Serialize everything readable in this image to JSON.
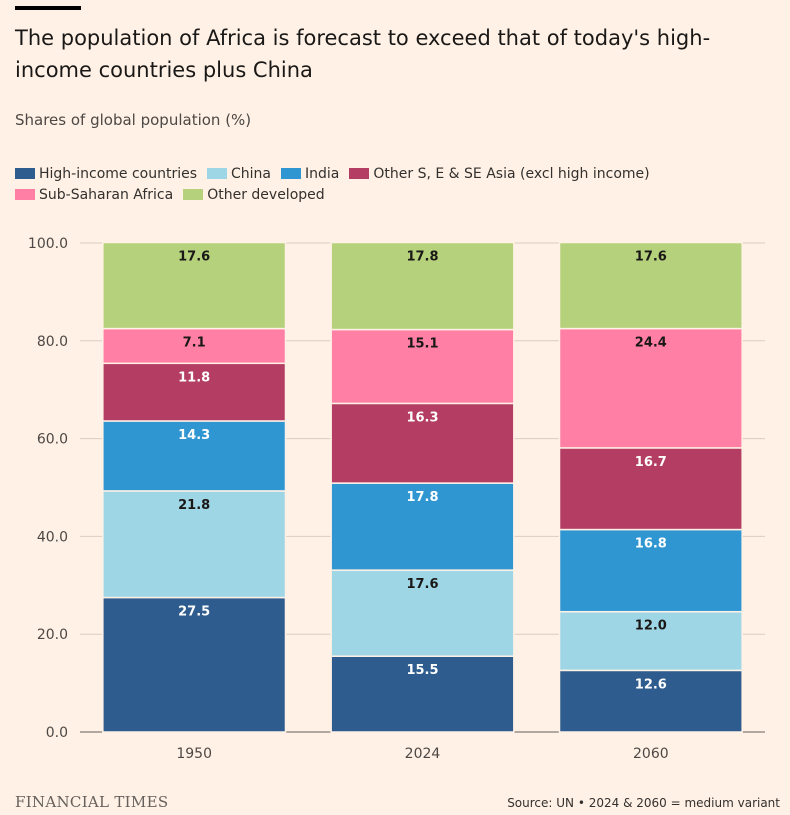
{
  "title": "The population of Africa is forecast to exceed that of today's high-income countries plus China",
  "subtitle": "Shares of global population (%)",
  "brand": "FINANCIAL TIMES",
  "source": "Source: UN • 2024 & 2060 = medium variant",
  "chart_data": {
    "type": "bar",
    "stacked": true,
    "categories": [
      "1950",
      "2024",
      "2060"
    ],
    "y_ticks": [
      "0.0",
      "20.0",
      "40.0",
      "60.0",
      "80.0",
      "100.0"
    ],
    "ylim": [
      0,
      100
    ],
    "legend_position": "top-left",
    "series": [
      {
        "name": "High-income countries",
        "color": "#2e5c8e",
        "label_color": "#ffffff",
        "values": [
          27.5,
          15.5,
          12.6
        ]
      },
      {
        "name": "China",
        "color": "#9fd6e6",
        "label_color": "#1a1817",
        "values": [
          21.8,
          17.6,
          12.0
        ]
      },
      {
        "name": "India",
        "color": "#3096d2",
        "label_color": "#ffffff",
        "values": [
          14.3,
          17.8,
          16.8
        ]
      },
      {
        "name": "Other S, E & SE Asia (excl high income)",
        "color": "#b43d63",
        "label_color": "#ffffff",
        "values": [
          11.8,
          16.3,
          16.7
        ]
      },
      {
        "name": "Sub-Saharan Africa",
        "color": "#ff7fa5",
        "label_color": "#1a1817",
        "values": [
          7.1,
          15.1,
          24.4
        ]
      },
      {
        "name": "Other developed",
        "color": "#b5d17b",
        "label_color": "#1a1817",
        "values": [
          17.6,
          17.8,
          17.6
        ]
      }
    ]
  }
}
